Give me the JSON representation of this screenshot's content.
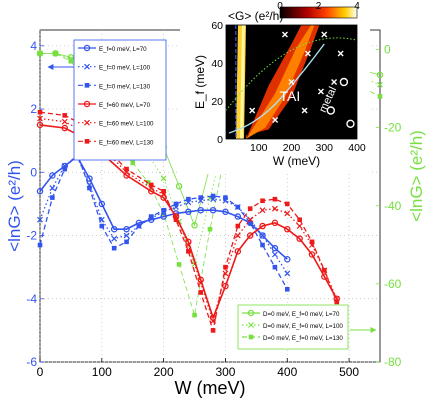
{
  "chart_data": {
    "type": "line",
    "xlabel": "W (meV)",
    "ylabel_left": "<lnG> (e²/h)",
    "ylabel_right": "<lnG> (e²/h)",
    "xlim": [
      0,
      550
    ],
    "ylim_left": [
      -6,
      4.5
    ],
    "ylim_right": [
      -80,
      5
    ],
    "xticks": [
      "0",
      "100",
      "200",
      "300",
      "400",
      "500"
    ],
    "yticks_left": [
      "-6",
      "-4",
      "-2",
      "0",
      "2",
      "4"
    ],
    "yticks_right": [
      "-80",
      "-60",
      "-40",
      "-20",
      "0"
    ],
    "grid": true,
    "colors": {
      "blue": "#3355ee",
      "red": "#ee1a1a",
      "green": "#77e040"
    },
    "series": [
      {
        "name": "E_f=0 meV, L=70",
        "axis": "left",
        "color": "#3355ee",
        "style": "solid-circle",
        "x": [
          0,
          20,
          40,
          60,
          80,
          100,
          120,
          140,
          160,
          180,
          200,
          220,
          240,
          260,
          280,
          300,
          320,
          340,
          360,
          380,
          400
        ],
        "y": [
          -0.6,
          -0.1,
          0.2,
          0.5,
          -0.2,
          -1.0,
          -1.8,
          -1.8,
          -1.6,
          -1.5,
          -1.4,
          -1.3,
          -1.25,
          -1.2,
          -1.2,
          -1.25,
          -1.4,
          -1.6,
          -2.0,
          -2.4,
          -2.75
        ]
      },
      {
        "name": "E_f=0 meV, L=100",
        "axis": "left",
        "color": "#3355ee",
        "style": "dot-cross",
        "x": [
          0,
          20,
          40,
          60,
          80,
          100,
          120,
          140,
          160,
          180,
          200,
          220,
          240,
          260,
          280,
          300,
          320,
          340,
          360,
          380,
          400
        ],
        "y": [
          -1.5,
          -0.5,
          0.2,
          0.5,
          -0.4,
          -1.5,
          -2.1,
          -2.0,
          -1.7,
          -1.45,
          -1.25,
          -1.1,
          -0.95,
          -0.9,
          -0.85,
          -0.9,
          -1.1,
          -1.5,
          -2.0,
          -2.6,
          -3.2
        ]
      },
      {
        "name": "E_f=0 meV, L=130",
        "axis": "left",
        "color": "#3355ee",
        "style": "dash-square",
        "x": [
          0,
          20,
          40,
          60,
          80,
          100,
          120,
          140,
          160,
          180,
          200,
          220,
          240,
          260,
          280,
          300,
          320,
          340,
          360,
          380,
          400
        ],
        "y": [
          -2.3,
          -0.8,
          0.1,
          0.6,
          -0.5,
          -1.7,
          -2.4,
          -2.2,
          -1.7,
          -1.4,
          -1.2,
          -1.0,
          -0.85,
          -0.8,
          -0.75,
          -0.8,
          -1.1,
          -1.6,
          -2.3,
          -3.0,
          -3.7
        ]
      },
      {
        "name": "E_f=60 meV, L=70",
        "axis": "left",
        "color": "#ee1a1a",
        "style": "solid-circle",
        "x": [
          0,
          40,
          60,
          100,
          140,
          180,
          200,
          220,
          240,
          260,
          280,
          300,
          320,
          340,
          360,
          380,
          400,
          420,
          440,
          460,
          480
        ],
        "y": [
          1.5,
          1.4,
          1.2,
          0.6,
          -0.1,
          -0.6,
          -0.8,
          -1.4,
          -2.2,
          -3.4,
          -4.6,
          -3.6,
          -2.5,
          -2.0,
          -1.7,
          -1.6,
          -1.8,
          -2.1,
          -2.6,
          -3.3,
          -4.0
        ]
      },
      {
        "name": "E_f=60 meV, L=100",
        "axis": "left",
        "color": "#ee1a1a",
        "style": "dot-cross",
        "x": [
          0,
          40,
          60,
          100,
          140,
          180,
          200,
          220,
          240,
          260,
          280,
          300,
          320,
          340,
          360,
          380,
          400,
          420,
          440,
          460,
          480
        ],
        "y": [
          1.7,
          1.6,
          1.4,
          0.8,
          0.0,
          -0.5,
          -0.7,
          -1.4,
          -2.3,
          -3.5,
          -4.7,
          -3.2,
          -2.0,
          -1.5,
          -1.2,
          -1.15,
          -1.3,
          -1.7,
          -2.3,
          -3.1,
          -4.0
        ]
      },
      {
        "name": "E_f=60 meV, L=130",
        "axis": "left",
        "color": "#ee1a1a",
        "style": "dash-square",
        "x": [
          0,
          40,
          60,
          100,
          140,
          180,
          200,
          220,
          240,
          260,
          280,
          300,
          320,
          340,
          360,
          380,
          400,
          420,
          440,
          460,
          480
        ],
        "y": [
          1.9,
          1.8,
          1.6,
          0.9,
          0.1,
          -0.4,
          -0.6,
          -1.5,
          -2.5,
          -3.8,
          -5.0,
          -3.0,
          -1.7,
          -1.15,
          -0.9,
          -0.85,
          -1.0,
          -1.5,
          -2.2,
          -3.1,
          -4.1
        ]
      },
      {
        "name": "D=0 meV, E_f=0 meV, L=70",
        "axis": "right",
        "color": "#77e040",
        "style": "solid-circle",
        "x": [
          0,
          25,
          50,
          75,
          100,
          125,
          150,
          175,
          200,
          225,
          250,
          275,
          300,
          325,
          350,
          375,
          400,
          425,
          450,
          475,
          500,
          525,
          550
        ],
        "y": [
          -1,
          -1,
          -2,
          -5,
          -10,
          -14,
          -17,
          -20,
          -25,
          -35,
          -45,
          -30,
          -18,
          -10,
          -5,
          -2,
          -1,
          -1.5,
          -2.5,
          -3.5,
          -4.5,
          -5.5,
          -6.5
        ]
      },
      {
        "name": "D=0 meV, E_f=0 meV, L=100",
        "axis": "right",
        "color": "#77e040",
        "style": "dot-cross",
        "x": [
          0,
          25,
          50,
          75,
          100,
          125,
          150,
          175,
          200,
          225,
          250,
          275,
          300,
          325,
          350,
          375,
          400,
          425,
          450,
          475,
          500,
          525,
          550
        ],
        "y": [
          -1,
          -1,
          -2.5,
          -7,
          -14,
          -19,
          -23,
          -27,
          -33,
          -44,
          -55,
          -38,
          -22,
          -12,
          -6,
          -2,
          -1.5,
          -2,
          -3,
          -4.5,
          -6,
          -7.5,
          -9
        ]
      },
      {
        "name": "D=0 meV, E_f=0 meV, L=130",
        "axis": "right",
        "color": "#77e040",
        "style": "dash-square",
        "x": [
          0,
          25,
          50,
          75,
          100,
          125,
          150,
          175,
          200,
          225,
          250,
          275,
          300,
          325,
          350,
          375,
          400,
          425,
          450,
          475,
          500,
          525,
          550
        ],
        "y": [
          -1,
          -1,
          -3,
          -9,
          -18,
          -24,
          -29,
          -34,
          -42,
          -55,
          -68,
          -46,
          -26,
          -14,
          -7,
          -2.5,
          -1.5,
          -2.5,
          -4,
          -6,
          -8,
          -10,
          -12
        ]
      }
    ],
    "inset": {
      "title": "<G> (e²/h)",
      "xlabel": "W (meV)",
      "ylabel": "E_f (meV)",
      "xticks": [
        "100",
        "200",
        "300",
        "400"
      ],
      "yticks": [
        "0",
        "20",
        "40",
        "60"
      ],
      "colorbar_ticks": [
        "0",
        "2",
        "4"
      ],
      "region_labels": [
        "TAI",
        "metal"
      ]
    }
  }
}
